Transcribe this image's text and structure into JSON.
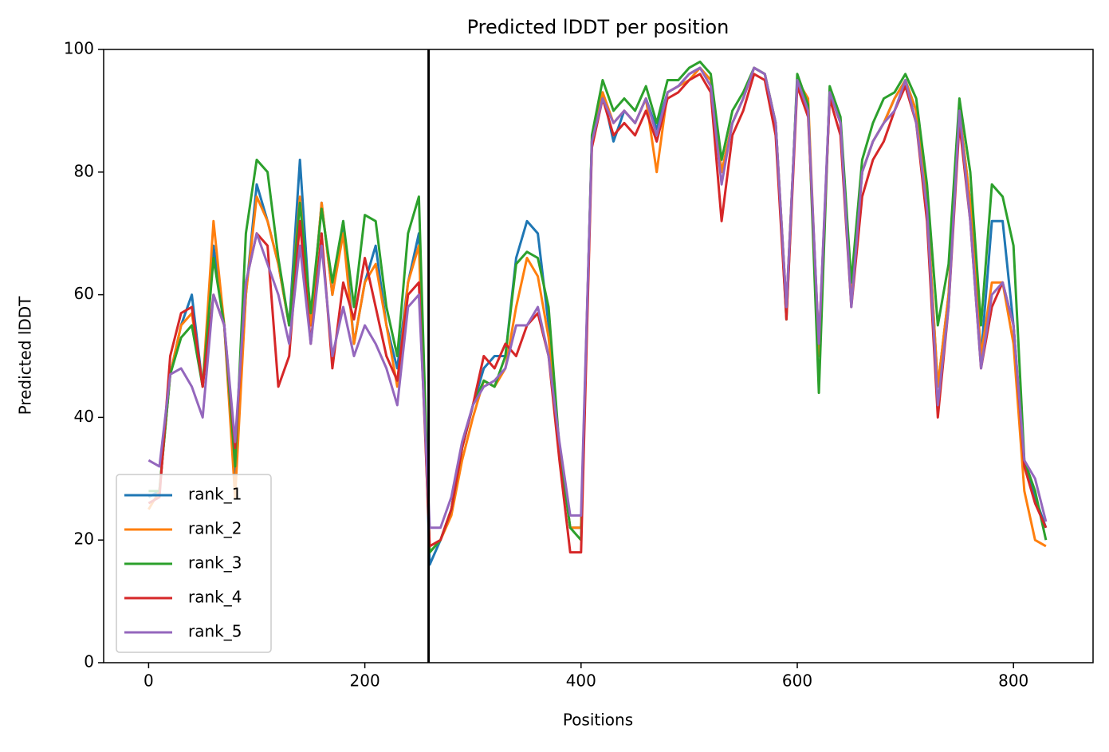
{
  "chart_data": {
    "type": "line",
    "title": "Predicted lDDT per position",
    "xlabel": "Positions",
    "ylabel": "Predicted lDDT",
    "x": [
      0,
      10,
      20,
      30,
      40,
      50,
      60,
      70,
      80,
      90,
      100,
      110,
      120,
      130,
      140,
      150,
      160,
      170,
      180,
      190,
      200,
      210,
      220,
      230,
      240,
      250,
      260,
      270,
      280,
      290,
      300,
      310,
      320,
      330,
      340,
      350,
      360,
      370,
      380,
      390,
      400,
      410,
      420,
      430,
      440,
      450,
      460,
      470,
      480,
      490,
      500,
      510,
      520,
      530,
      540,
      550,
      560,
      570,
      580,
      590,
      600,
      610,
      620,
      630,
      640,
      650,
      660,
      670,
      680,
      690,
      700,
      710,
      720,
      730,
      740,
      750,
      760,
      770,
      780,
      790,
      800,
      810,
      820,
      830
    ],
    "series": [
      {
        "name": "rank_1",
        "color": "#1f77b4",
        "values": [
          27,
          28,
          47,
          55,
          60,
          45,
          68,
          55,
          30,
          60,
          78,
          72,
          65,
          55,
          82,
          55,
          75,
          60,
          72,
          52,
          62,
          68,
          55,
          48,
          62,
          70,
          16,
          20,
          25,
          35,
          42,
          48,
          50,
          50,
          66,
          72,
          70,
          55,
          35,
          22,
          22,
          85,
          93,
          85,
          90,
          88,
          92,
          87,
          93,
          94,
          96,
          97,
          95,
          80,
          88,
          92,
          97,
          96,
          88,
          58,
          95,
          90,
          50,
          93,
          88,
          60,
          80,
          85,
          88,
          92,
          95,
          90,
          75,
          45,
          60,
          90,
          75,
          50,
          72,
          72,
          55,
          32,
          27,
          22
        ]
      },
      {
        "name": "rank_2",
        "color": "#ff7f0e",
        "values": [
          25,
          28,
          47,
          55,
          57,
          45,
          72,
          55,
          27,
          60,
          76,
          72,
          65,
          55,
          76,
          55,
          75,
          60,
          70,
          52,
          62,
          65,
          55,
          45,
          62,
          68,
          18,
          20,
          24,
          33,
          40,
          46,
          45,
          48,
          58,
          66,
          63,
          53,
          35,
          22,
          22,
          85,
          93,
          88,
          90,
          88,
          92,
          80,
          93,
          94,
          95,
          97,
          95,
          80,
          88,
          92,
          97,
          96,
          88,
          58,
          95,
          92,
          50,
          93,
          88,
          60,
          80,
          85,
          88,
          92,
          95,
          90,
          75,
          45,
          60,
          90,
          75,
          50,
          62,
          62,
          52,
          28,
          20,
          19
        ]
      },
      {
        "name": "rank_3",
        "color": "#2ca02c",
        "values": [
          28,
          28,
          47,
          53,
          55,
          45,
          66,
          55,
          32,
          70,
          82,
          80,
          66,
          55,
          75,
          57,
          74,
          62,
          72,
          58,
          73,
          72,
          58,
          50,
          70,
          76,
          18,
          20,
          25,
          35,
          42,
          46,
          45,
          50,
          65,
          67,
          66,
          58,
          35,
          22,
          20,
          86,
          95,
          90,
          92,
          90,
          94,
          88,
          95,
          95,
          97,
          98,
          96,
          82,
          90,
          93,
          97,
          96,
          88,
          56,
          96,
          91,
          44,
          94,
          89,
          62,
          82,
          88,
          92,
          93,
          96,
          92,
          78,
          55,
          65,
          92,
          80,
          55,
          78,
          76,
          68,
          33,
          28,
          20
        ]
      },
      {
        "name": "rank_4",
        "color": "#d62728",
        "values": [
          26,
          27,
          50,
          57,
          58,
          45,
          60,
          55,
          35,
          62,
          70,
          68,
          45,
          50,
          72,
          52,
          70,
          48,
          62,
          56,
          66,
          58,
          50,
          46,
          60,
          62,
          19,
          20,
          25,
          35,
          42,
          50,
          48,
          52,
          50,
          55,
          57,
          50,
          33,
          18,
          18,
          84,
          92,
          86,
          88,
          86,
          90,
          85,
          92,
          93,
          95,
          96,
          93,
          72,
          86,
          90,
          96,
          95,
          86,
          56,
          94,
          89,
          52,
          92,
          86,
          58,
          76,
          82,
          85,
          90,
          94,
          88,
          72,
          40,
          58,
          88,
          72,
          48,
          58,
          62,
          55,
          32,
          26,
          22
        ]
      },
      {
        "name": "rank_5",
        "color": "#9467bd",
        "values": [
          33,
          32,
          47,
          48,
          45,
          40,
          60,
          55,
          36,
          62,
          70,
          65,
          60,
          52,
          68,
          52,
          68,
          50,
          58,
          50,
          55,
          52,
          48,
          42,
          58,
          60,
          22,
          22,
          27,
          36,
          42,
          45,
          46,
          48,
          55,
          55,
          58,
          50,
          36,
          24,
          24,
          85,
          92,
          88,
          90,
          88,
          92,
          86,
          93,
          94,
          96,
          97,
          94,
          78,
          88,
          92,
          97,
          96,
          88,
          58,
          95,
          90,
          52,
          93,
          88,
          58,
          80,
          85,
          88,
          90,
          95,
          88,
          74,
          42,
          58,
          90,
          72,
          48,
          60,
          62,
          55,
          33,
          30,
          23
        ]
      }
    ],
    "vline": 259,
    "xlim": [
      -41.6,
      873.6
    ],
    "xticks": [
      0,
      200,
      400,
      600,
      800
    ],
    "ylim": [
      0,
      100
    ],
    "yticks": [
      0,
      20,
      40,
      60,
      80,
      100
    ],
    "legend": "lower left"
  }
}
